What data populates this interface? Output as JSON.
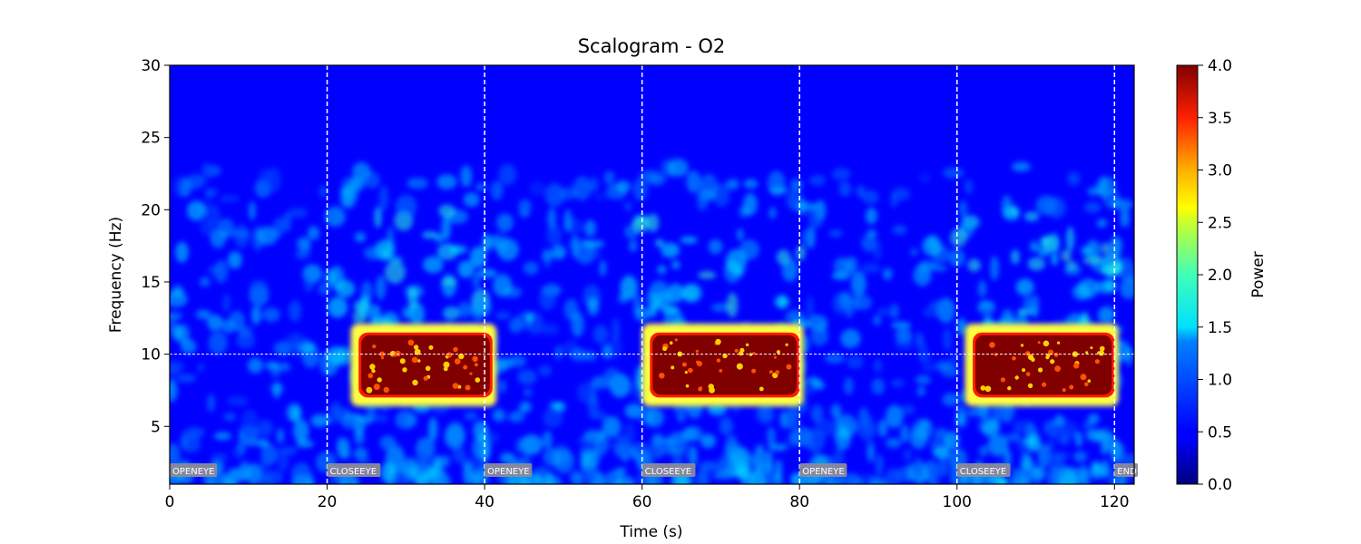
{
  "chart_data": {
    "type": "heatmap",
    "title": "Scalogram - O2",
    "xlabel": "Time (s)",
    "ylabel": "Frequency (Hz)",
    "xlim": [
      0,
      122.5
    ],
    "ylim": [
      1,
      30
    ],
    "x_ticks": [
      0,
      20,
      40,
      60,
      80,
      100,
      120
    ],
    "y_ticks": [
      5,
      10,
      15,
      20,
      25,
      30
    ],
    "colormap": "jet",
    "colorbar": {
      "label": "Power",
      "range": [
        0.0,
        4.0
      ],
      "ticks": [
        "0.0",
        "0.5",
        "1.0",
        "1.5",
        "2.0",
        "2.5",
        "3.0",
        "3.5",
        "4.0"
      ]
    },
    "reference_line": {
      "frequency": 10,
      "style": "dashed",
      "color": "#ffffff"
    },
    "events": [
      {
        "time": 0,
        "label": "OPENEYE"
      },
      {
        "time": 20,
        "label": "CLOSEEYE"
      },
      {
        "time": 40,
        "label": "OPENEYE"
      },
      {
        "time": 60,
        "label": "CLOSEEYE"
      },
      {
        "time": 80,
        "label": "OPENEYE"
      },
      {
        "time": 100,
        "label": "CLOSEEYE"
      },
      {
        "time": 120,
        "label": "END"
      }
    ],
    "high_power_regions": [
      {
        "t_start": 24,
        "t_end": 41,
        "f_low": 7,
        "f_high": 11.5,
        "power": 4.0
      },
      {
        "t_start": 61,
        "t_end": 80,
        "f_low": 7,
        "f_high": 11.5,
        "power": 4.0
      },
      {
        "t_start": 102,
        "t_end": 120,
        "f_low": 7,
        "f_high": 11.5,
        "power": 4.0
      }
    ],
    "background_power": 0.0
  }
}
